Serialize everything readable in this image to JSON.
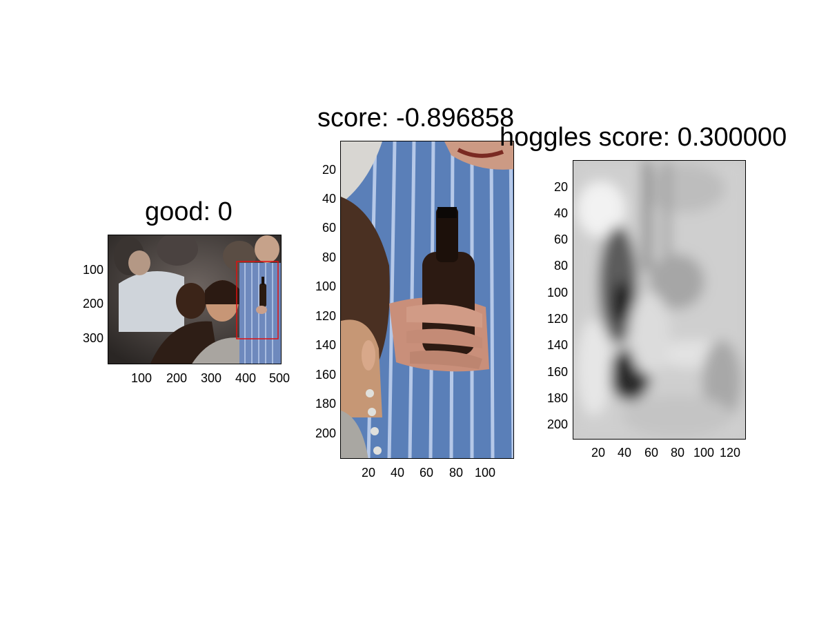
{
  "panels": [
    {
      "title": "good: 0",
      "yticks": [
        "100",
        "200",
        "300"
      ],
      "xticks": [
        "100",
        "200",
        "300",
        "400",
        "500"
      ]
    },
    {
      "title": "score: -0.896858",
      "yticks": [
        "20",
        "40",
        "60",
        "80",
        "100",
        "120",
        "140",
        "160",
        "180",
        "200"
      ],
      "xticks": [
        "20",
        "40",
        "60",
        "80",
        "100"
      ]
    },
    {
      "title": "hoggles score: 0.300000",
      "yticks": [
        "20",
        "40",
        "60",
        "80",
        "100",
        "120",
        "140",
        "160",
        "180",
        "200"
      ],
      "xticks": [
        "20",
        "40",
        "60",
        "80",
        "100",
        "120"
      ]
    }
  ],
  "colors": {
    "detection_box": "#e01010",
    "axis": "#000000"
  }
}
